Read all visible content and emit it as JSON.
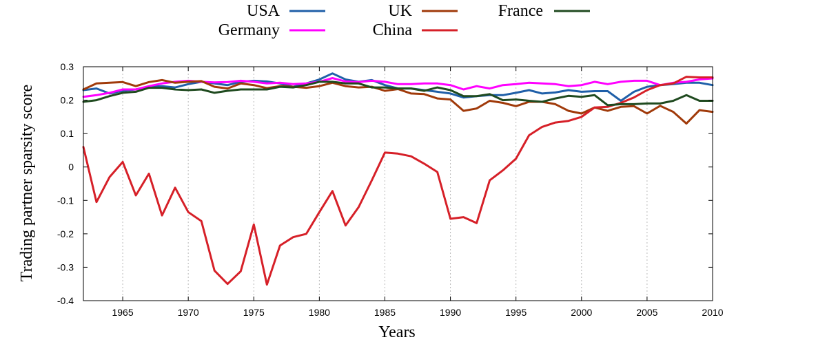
{
  "chart_data": {
    "type": "line",
    "xlabel": "Years",
    "ylabel": "Trading partner sparsity score",
    "xlim": [
      1962,
      2010
    ],
    "ylim": [
      -0.4,
      0.3
    ],
    "xticks": [
      1965,
      1970,
      1975,
      1980,
      1985,
      1990,
      1995,
      2000,
      2005,
      2010
    ],
    "yticks": [
      -0.4,
      -0.3,
      -0.2,
      -0.1,
      0,
      0.1,
      0.2,
      0.3
    ],
    "ytick_labels": [
      "-0.4",
      "-0.3",
      "-0.2",
      "-0.1",
      "0",
      "0.1",
      "0.2",
      "0.3"
    ],
    "grid": "x-dotted",
    "legend_position": "top",
    "x": [
      1962,
      1963,
      1964,
      1965,
      1966,
      1967,
      1968,
      1969,
      1970,
      1971,
      1972,
      1973,
      1974,
      1975,
      1976,
      1977,
      1978,
      1979,
      1980,
      1981,
      1982,
      1983,
      1984,
      1985,
      1986,
      1987,
      1988,
      1989,
      1990,
      1991,
      1992,
      1993,
      1994,
      1995,
      1996,
      1997,
      1998,
      1999,
      2000,
      2001,
      2002,
      2003,
      2004,
      2005,
      2006,
      2007,
      2008,
      2009,
      2010
    ],
    "series": [
      {
        "name": "USA",
        "color": "#1f5fa8",
        "values": [
          0.23,
          0.235,
          0.22,
          0.228,
          0.232,
          0.24,
          0.242,
          0.238,
          0.248,
          0.255,
          0.25,
          0.245,
          0.255,
          0.258,
          0.256,
          0.25,
          0.24,
          0.25,
          0.262,
          0.28,
          0.262,
          0.255,
          0.26,
          0.245,
          0.235,
          0.235,
          0.23,
          0.225,
          0.22,
          0.208,
          0.212,
          0.215,
          0.215,
          0.222,
          0.23,
          0.22,
          0.223,
          0.23,
          0.225,
          0.227,
          0.227,
          0.198,
          0.225,
          0.24,
          0.245,
          0.248,
          0.252,
          0.252,
          0.245
        ]
      },
      {
        "name": "Germany",
        "color": "#ff00ff",
        "values": [
          0.21,
          0.215,
          0.222,
          0.232,
          0.232,
          0.242,
          0.25,
          0.255,
          0.258,
          0.255,
          0.253,
          0.254,
          0.258,
          0.255,
          0.25,
          0.252,
          0.248,
          0.25,
          0.255,
          0.266,
          0.256,
          0.254,
          0.258,
          0.255,
          0.248,
          0.248,
          0.25,
          0.25,
          0.245,
          0.232,
          0.242,
          0.235,
          0.245,
          0.248,
          0.252,
          0.25,
          0.248,
          0.242,
          0.245,
          0.255,
          0.248,
          0.255,
          0.258,
          0.258,
          0.245,
          0.252,
          0.255,
          0.262,
          0.265
        ]
      },
      {
        "name": "UK",
        "color": "#a03a0a",
        "values": [
          0.232,
          0.25,
          0.252,
          0.254,
          0.242,
          0.254,
          0.26,
          0.252,
          0.255,
          0.257,
          0.24,
          0.235,
          0.25,
          0.245,
          0.236,
          0.242,
          0.24,
          0.237,
          0.242,
          0.252,
          0.242,
          0.238,
          0.24,
          0.228,
          0.233,
          0.22,
          0.218,
          0.205,
          0.202,
          0.168,
          0.175,
          0.198,
          0.192,
          0.182,
          0.195,
          0.195,
          0.188,
          0.168,
          0.16,
          0.178,
          0.168,
          0.18,
          0.182,
          0.16,
          0.183,
          0.165,
          0.13,
          0.17,
          0.165
        ]
      },
      {
        "name": "China",
        "color": "#d62028",
        "values": [
          0.06,
          -0.105,
          -0.03,
          0.015,
          -0.085,
          -0.02,
          -0.145,
          -0.062,
          -0.135,
          -0.162,
          -0.31,
          -0.35,
          -0.312,
          -0.172,
          -0.352,
          -0.235,
          -0.21,
          -0.2,
          -0.135,
          -0.072,
          -0.175,
          -0.12,
          -0.04,
          0.043,
          0.04,
          0.032,
          0.01,
          -0.015,
          -0.155,
          -0.15,
          -0.168,
          -0.04,
          -0.01,
          0.025,
          0.095,
          0.12,
          0.133,
          0.138,
          0.15,
          0.178,
          0.18,
          0.192,
          0.208,
          0.23,
          0.245,
          0.25,
          0.27,
          0.268,
          0.268
        ]
      },
      {
        "name": "France",
        "color": "#1f4a1f",
        "values": [
          0.195,
          0.2,
          0.212,
          0.222,
          0.225,
          0.237,
          0.237,
          0.232,
          0.23,
          0.232,
          0.222,
          0.228,
          0.232,
          0.232,
          0.232,
          0.24,
          0.238,
          0.245,
          0.255,
          0.255,
          0.25,
          0.25,
          0.238,
          0.238,
          0.235,
          0.235,
          0.228,
          0.238,
          0.23,
          0.212,
          0.212,
          0.218,
          0.2,
          0.202,
          0.198,
          0.195,
          0.205,
          0.213,
          0.21,
          0.215,
          0.185,
          0.188,
          0.188,
          0.19,
          0.19,
          0.198,
          0.215,
          0.198,
          0.198
        ]
      }
    ]
  }
}
